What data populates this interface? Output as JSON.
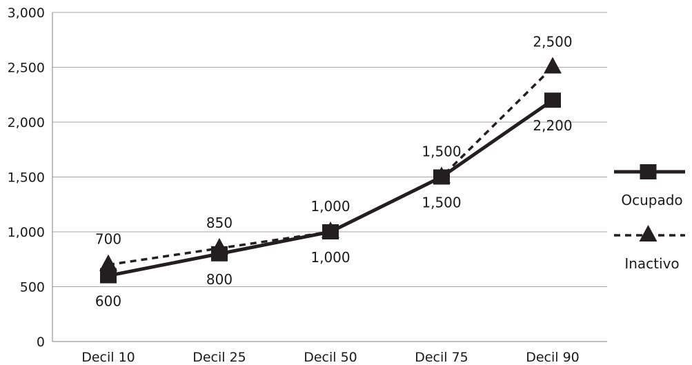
{
  "chart_data": {
    "type": "line",
    "title": "",
    "xlabel": "",
    "ylabel": "",
    "categories": [
      "Decil 10",
      "Decil 25",
      "Decil 50",
      "Decil 75",
      "Decil 90"
    ],
    "ylim": [
      0,
      3000
    ],
    "yticks": [
      0,
      500,
      1000,
      1500,
      2000,
      2500,
      3000
    ],
    "ytick_labels": [
      "0",
      "500",
      "1,000",
      "1,500",
      "2,000",
      "2,500",
      "3,000"
    ],
    "grid": "horizontal",
    "legend_position": "right",
    "series": [
      {
        "name": "Ocupado",
        "values": [
          600,
          800,
          1000,
          1500,
          2200
        ],
        "labels": [
          "600",
          "800",
          "1,000",
          "1,500",
          "2,200"
        ],
        "line_style": "solid",
        "marker": "square",
        "label_position": "below",
        "color": "#231f20"
      },
      {
        "name": "Inactivo",
        "values": [
          700,
          850,
          1000,
          1500,
          2500
        ],
        "labels": [
          "700",
          "850",
          "1,000",
          "1,500",
          "2,500"
        ],
        "line_style": "dashed",
        "marker": "triangle",
        "label_position": "above",
        "color": "#231f20"
      }
    ]
  }
}
